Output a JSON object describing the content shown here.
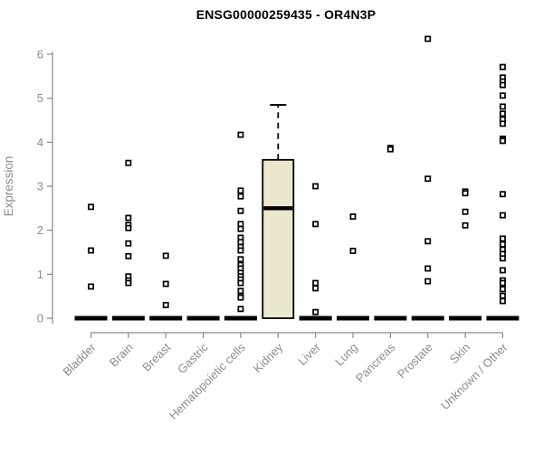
{
  "page": {
    "title": "ENSG00000259435 - OR4N3P"
  },
  "chart_data": {
    "type": "boxplot",
    "title": "ENSG00000259435 - OR4N3P",
    "xlabel": "",
    "ylabel": "Expression",
    "ylim": [
      0,
      6
    ],
    "yticks": [
      0,
      1,
      2,
      3,
      4,
      5,
      6
    ],
    "grid": false,
    "legend": "none",
    "marker": "open-square",
    "colors": {
      "box_fill": "#ECE8CE",
      "box_stroke": "#000000",
      "median": "#000000",
      "axis": "#888888",
      "tick_label": "#8C8C8C",
      "title": "#000000",
      "point_fill": "#FFFFFF",
      "point_stroke": "#000000"
    },
    "categories": [
      "Bladder",
      "Brain",
      "Breast",
      "Gastric",
      "Hematopoietic cells",
      "Kidney",
      "Liver",
      "Lung",
      "Pancreas",
      "Prostate",
      "Skin",
      "Unknown / Other"
    ],
    "groups": [
      {
        "category": "Bladder",
        "median": 0,
        "q1": 0,
        "q3": 0,
        "whisker_low": 0,
        "whisker_high": 0,
        "outliers": [
          2.53,
          1.54,
          0.72
        ]
      },
      {
        "category": "Brain",
        "median": 0,
        "q1": 0,
        "q3": 0,
        "whisker_low": 0,
        "whisker_high": 0,
        "outliers": [
          3.53,
          2.28,
          2.12,
          2.05,
          1.7,
          1.41,
          0.95,
          0.86,
          0.8
        ]
      },
      {
        "category": "Breast",
        "median": 0,
        "q1": 0,
        "q3": 0,
        "whisker_low": 0,
        "whisker_high": 0,
        "outliers": [
          1.42,
          0.78,
          0.3
        ]
      },
      {
        "category": "Gastric",
        "median": 0,
        "q1": 0,
        "q3": 0,
        "whisker_low": 0,
        "whisker_high": 0,
        "outliers": []
      },
      {
        "category": "Hematopoietic cells",
        "median": 0,
        "q1": 0,
        "q3": 0,
        "whisker_low": 0,
        "whisker_high": 0,
        "outliers": [
          4.17,
          2.9,
          2.77,
          2.44,
          2.14,
          2.03,
          1.83,
          1.73,
          1.62,
          1.54,
          1.34,
          1.21,
          1.13,
          1.03,
          0.95,
          0.88,
          0.8,
          0.62,
          0.51,
          0.47,
          0.21
        ]
      },
      {
        "category": "Kidney",
        "median": 2.5,
        "q1": 0,
        "q3": 3.6,
        "whisker_low": 0,
        "whisker_high": 4.85,
        "outliers": []
      },
      {
        "category": "Liver",
        "median": 0,
        "q1": 0,
        "q3": 0,
        "whisker_low": 0,
        "whisker_high": 0,
        "outliers": [
          3.0,
          2.14,
          0.8,
          0.68,
          0.14
        ]
      },
      {
        "category": "Lung",
        "median": 0,
        "q1": 0,
        "q3": 0,
        "whisker_low": 0,
        "whisker_high": 0,
        "outliers": [
          2.31,
          1.53
        ]
      },
      {
        "category": "Pancreas",
        "median": 0,
        "q1": 0,
        "q3": 0,
        "whisker_low": 0,
        "whisker_high": 0,
        "outliers": [
          3.87,
          3.84
        ]
      },
      {
        "category": "Prostate",
        "median": 0,
        "q1": 0,
        "q3": 0,
        "whisker_low": 0,
        "whisker_high": 0,
        "outliers": [
          6.35,
          3.17,
          1.75,
          1.13,
          0.84
        ]
      },
      {
        "category": "Skin",
        "median": 0,
        "q1": 0,
        "q3": 0,
        "whisker_low": 0,
        "whisker_high": 0,
        "outliers": [
          2.88,
          2.84,
          2.42,
          2.11
        ]
      },
      {
        "category": "Unknown / Other",
        "median": 0,
        "q1": 0,
        "q3": 0,
        "whisker_low": 0,
        "whisker_high": 0,
        "outliers": [
          5.71,
          5.47,
          5.38,
          5.3,
          5.06,
          4.81,
          4.65,
          4.52,
          4.42,
          4.08,
          4.05,
          4.03,
          2.82,
          2.34,
          1.81,
          1.68,
          1.56,
          1.46,
          1.36,
          1.09,
          0.86,
          0.8,
          0.66,
          0.51,
          0.39
        ]
      }
    ]
  }
}
